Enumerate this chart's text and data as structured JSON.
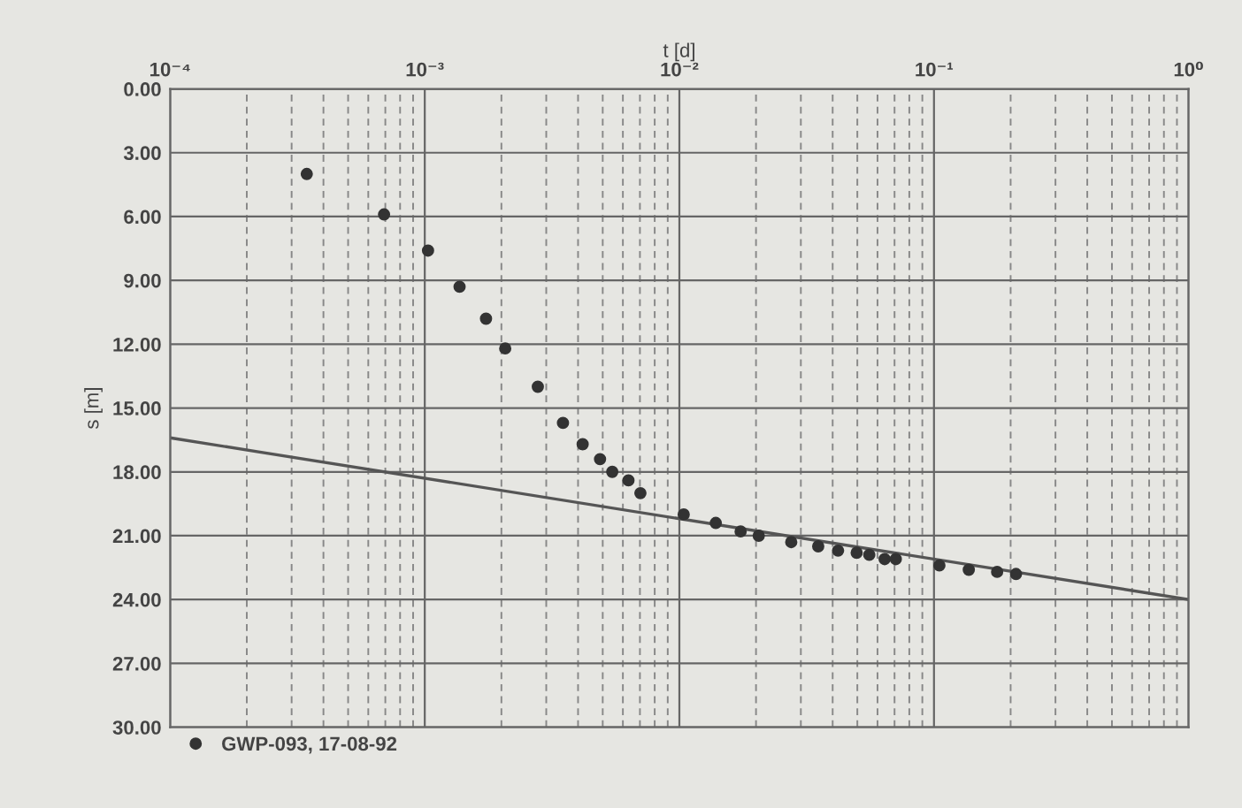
{
  "chart_data": {
    "type": "scatter",
    "xlabel": "t [d]",
    "ylabel": "s [m]",
    "log": "x",
    "xlim": [
      0.0001,
      1
    ],
    "xticks": [
      {
        "value": 0.0001,
        "label": "10⁻⁴"
      },
      {
        "value": 0.001,
        "label": "10⁻³"
      },
      {
        "value": 0.01,
        "label": "10⁻²"
      },
      {
        "value": 0.1,
        "label": "10⁻¹"
      },
      {
        "value": 1,
        "label": "10⁰"
      }
    ],
    "ylim": [
      30,
      0
    ],
    "yticks": [
      {
        "value": 0,
        "label": "0.00"
      },
      {
        "value": 3,
        "label": "3.00"
      },
      {
        "value": 6,
        "label": "6.00"
      },
      {
        "value": 9,
        "label": "9.00"
      },
      {
        "value": 12,
        "label": "12.00"
      },
      {
        "value": 15,
        "label": "15.00"
      },
      {
        "value": 18,
        "label": "18.00"
      },
      {
        "value": 21,
        "label": "21.00"
      },
      {
        "value": 24,
        "label": "24.00"
      },
      {
        "value": 27,
        "label": "27.00"
      },
      {
        "value": 30,
        "label": "30.00"
      }
    ],
    "grid": true,
    "legend": "bottom left",
    "series": [
      {
        "name": "GWP-093, 17-08-92",
        "marker": "circle",
        "color": "#333333",
        "x": [
          0.000344,
          0.000692,
          0.00103,
          0.00137,
          0.00174,
          0.00207,
          0.00278,
          0.00349,
          0.00417,
          0.00488,
          0.00545,
          0.00631,
          0.00703,
          0.0104,
          0.0139,
          0.0174,
          0.0205,
          0.0275,
          0.0351,
          0.042,
          0.0497,
          0.0557,
          0.064,
          0.0708,
          0.105,
          0.137,
          0.177,
          0.21
        ],
        "values": [
          4.0,
          5.9,
          7.6,
          9.3,
          10.8,
          12.2,
          14.0,
          15.7,
          16.7,
          17.4,
          18.0,
          18.4,
          19.0,
          20.0,
          20.4,
          20.8,
          21.0,
          21.3,
          21.5,
          21.7,
          21.8,
          21.9,
          22.1,
          22.1,
          22.4,
          22.6,
          22.7,
          22.8
        ]
      },
      {
        "type": "line",
        "marker": "none",
        "color": "#555555",
        "x": [
          0.0001,
          1
        ],
        "values": [
          16.4,
          24.0
        ]
      }
    ]
  }
}
